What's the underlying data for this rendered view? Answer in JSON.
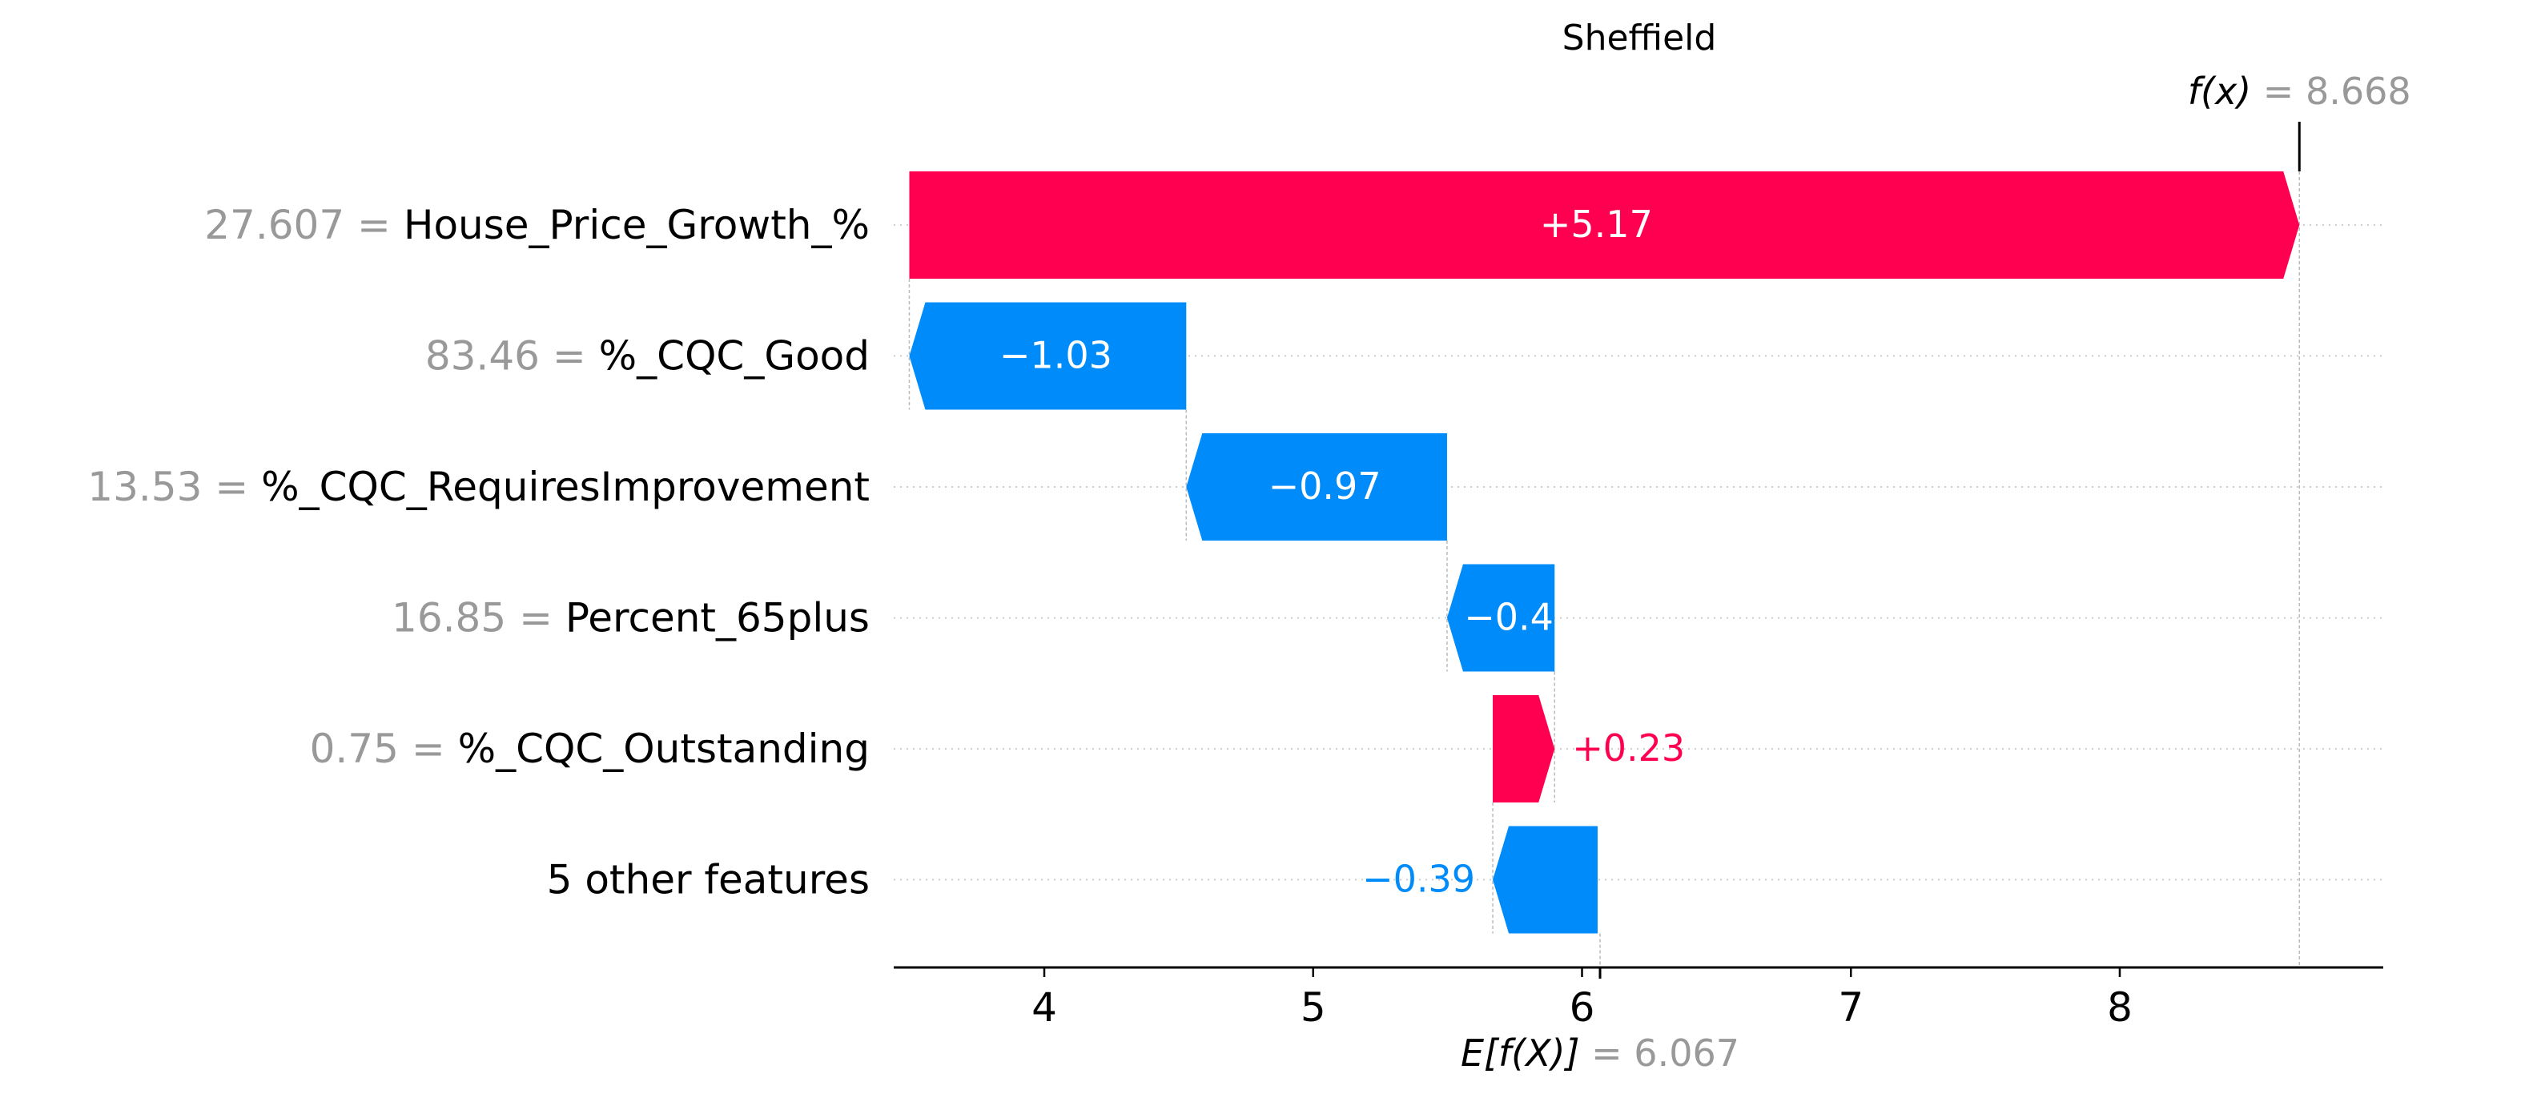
{
  "chart_data": {
    "type": "waterfall",
    "title": "Sheffield",
    "fx_label": "f(x)",
    "fx_value_text": "= 8.668",
    "fx_value": 8.668,
    "base_label": "E[f(X)]",
    "base_value_text": "= 6.067",
    "base_value": 6.067,
    "xlim": [
      3.44,
      8.98
    ],
    "xticks": [
      4,
      5,
      6,
      7,
      8
    ],
    "features": [
      {
        "value_text": "27.607 =",
        "name": "House_Price_Growth_%",
        "shap": 5.17,
        "label": "+5.17",
        "label_pos": "inside"
      },
      {
        "value_text": "83.46 =",
        "name": "%_CQC_Good",
        "shap": -1.03,
        "label": "−1.03",
        "label_pos": "inside"
      },
      {
        "value_text": "13.53 =",
        "name": "%_CQC_RequiresImprovement",
        "shap": -0.97,
        "label": "−0.97",
        "label_pos": "inside"
      },
      {
        "value_text": "16.85 =",
        "name": "Percent_65plus",
        "shap": -0.4,
        "label": "−0.4",
        "label_pos": "inside"
      },
      {
        "value_text": "0.75 =",
        "name": "%_CQC_Outstanding",
        "shap": 0.23,
        "label": "+0.23",
        "label_pos": "outside"
      },
      {
        "value_text": "",
        "name": "5 other features",
        "shap": -0.39,
        "label": "−0.39",
        "label_pos": "outside"
      }
    ],
    "colors": {
      "positive": "#ff0051",
      "negative": "#008bfb",
      "grey": "#999999",
      "text": "#000000"
    },
    "grid": "dotted-horizontal"
  }
}
